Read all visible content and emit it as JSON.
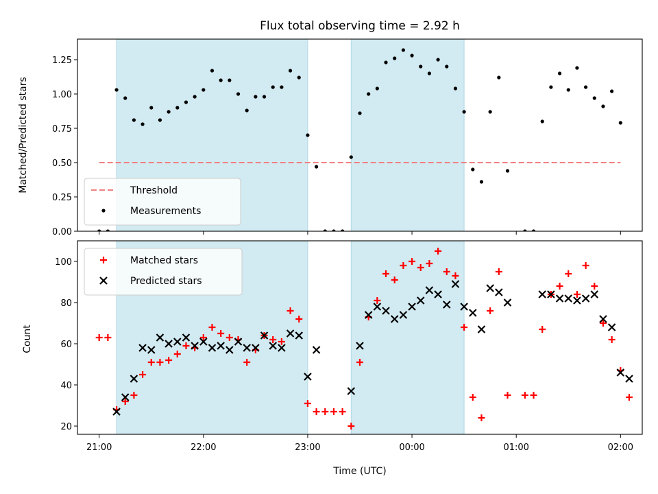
{
  "chart_data": [
    {
      "type": "scatter",
      "title": "Flux total observing time = 2.92 h",
      "ylabel": "Matched/Predicted stars",
      "xlabel": "",
      "x_units": "minutes after 21:00 UTC",
      "ylim": [
        0.0,
        1.4
      ],
      "yticks": [
        "0.00",
        "0.25",
        "0.50",
        "0.75",
        "1.00",
        "1.25"
      ],
      "threshold": {
        "name": "Threshold",
        "value": 0.5,
        "x_range": [
          0,
          300
        ],
        "color": "#f08080"
      },
      "shaded_intervals": [
        [
          10,
          120
        ],
        [
          145,
          210
        ]
      ],
      "shade_color": "#add8e6",
      "legend": {
        "placement": "lower-left",
        "entries": [
          "Threshold",
          "Measurements"
        ]
      },
      "series": [
        {
          "name": "Measurements",
          "color": "#000000",
          "points": [
            [
              0,
              0.0
            ],
            [
              5,
              0.0
            ],
            [
              10,
              1.03
            ],
            [
              15,
              0.97
            ],
            [
              20,
              0.81
            ],
            [
              25,
              0.78
            ],
            [
              30,
              0.9
            ],
            [
              35,
              0.81
            ],
            [
              40,
              0.87
            ],
            [
              45,
              0.9
            ],
            [
              50,
              0.94
            ],
            [
              55,
              0.98
            ],
            [
              60,
              1.03
            ],
            [
              65,
              1.17
            ],
            [
              70,
              1.1
            ],
            [
              75,
              1.1
            ],
            [
              80,
              1.0
            ],
            [
              85,
              0.88
            ],
            [
              90,
              0.98
            ],
            [
              95,
              0.98
            ],
            [
              100,
              1.05
            ],
            [
              105,
              1.05
            ],
            [
              110,
              1.17
            ],
            [
              115,
              1.12
            ],
            [
              120,
              0.7
            ],
            [
              125,
              0.47
            ],
            [
              130,
              0.0
            ],
            [
              135,
              0.0
            ],
            [
              140,
              0.0
            ],
            [
              145,
              0.54
            ],
            [
              150,
              0.86
            ],
            [
              155,
              1.0
            ],
            [
              160,
              1.04
            ],
            [
              165,
              1.23
            ],
            [
              170,
              1.26
            ],
            [
              175,
              1.32
            ],
            [
              180,
              1.28
            ],
            [
              185,
              1.2
            ],
            [
              190,
              1.15
            ],
            [
              195,
              1.25
            ],
            [
              200,
              1.2
            ],
            [
              205,
              1.04
            ],
            [
              210,
              0.87
            ],
            [
              215,
              0.45
            ],
            [
              220,
              0.36
            ],
            [
              225,
              0.87
            ],
            [
              230,
              1.12
            ],
            [
              235,
              0.44
            ],
            [
              245,
              0.0
            ],
            [
              250,
              0.0
            ],
            [
              255,
              0.8
            ],
            [
              260,
              1.05
            ],
            [
              265,
              1.15
            ],
            [
              270,
              1.03
            ],
            [
              275,
              1.19
            ],
            [
              280,
              1.05
            ],
            [
              285,
              0.97
            ],
            [
              290,
              0.91
            ],
            [
              295,
              1.02
            ],
            [
              300,
              0.79
            ]
          ]
        }
      ]
    },
    {
      "type": "scatter",
      "title": "",
      "ylabel": "Count",
      "xlabel": "Time (UTC)",
      "x_units": "minutes after 21:00 UTC",
      "xticks": [
        "21:00",
        "22:00",
        "23:00",
        "00:00",
        "01:00",
        "02:00"
      ],
      "ylim": [
        16,
        110
      ],
      "yticks": [
        "20",
        "40",
        "60",
        "80",
        "100"
      ],
      "shaded_intervals": [
        [
          10,
          120
        ],
        [
          145,
          210
        ]
      ],
      "shade_color": "#add8e6",
      "legend": {
        "placement": "upper-left",
        "entries": [
          "Matched stars",
          "Predicted stars"
        ]
      },
      "series": [
        {
          "name": "Matched stars",
          "marker": "plus",
          "color": "#ff0000",
          "points": [
            [
              0,
              63
            ],
            [
              5,
              63
            ],
            [
              10,
              28
            ],
            [
              15,
              32
            ],
            [
              20,
              35
            ],
            [
              25,
              45
            ],
            [
              30,
              51
            ],
            [
              35,
              51
            ],
            [
              40,
              52
            ],
            [
              45,
              55
            ],
            [
              50,
              59
            ],
            [
              55,
              58
            ],
            [
              60,
              63
            ],
            [
              65,
              68
            ],
            [
              70,
              65
            ],
            [
              75,
              63
            ],
            [
              80,
              62
            ],
            [
              85,
              51
            ],
            [
              90,
              57
            ],
            [
              95,
              64
            ],
            [
              100,
              62
            ],
            [
              105,
              61
            ],
            [
              110,
              76
            ],
            [
              115,
              72
            ],
            [
              120,
              31
            ],
            [
              125,
              27
            ],
            [
              130,
              27
            ],
            [
              135,
              27
            ],
            [
              140,
              27
            ],
            [
              145,
              20
            ],
            [
              150,
              51
            ],
            [
              155,
              73
            ],
            [
              160,
              81
            ],
            [
              165,
              94
            ],
            [
              170,
              91
            ],
            [
              175,
              98
            ],
            [
              180,
              100
            ],
            [
              185,
              97
            ],
            [
              190,
              99
            ],
            [
              195,
              105
            ],
            [
              200,
              95
            ],
            [
              205,
              93
            ],
            [
              210,
              68
            ],
            [
              215,
              34
            ],
            [
              220,
              24
            ],
            [
              225,
              76
            ],
            [
              230,
              95
            ],
            [
              235,
              35
            ],
            [
              245,
              35
            ],
            [
              250,
              35
            ],
            [
              255,
              67
            ],
            [
              260,
              84
            ],
            [
              265,
              88
            ],
            [
              270,
              94
            ],
            [
              275,
              84
            ],
            [
              280,
              98
            ],
            [
              285,
              88
            ],
            [
              290,
              70
            ],
            [
              295,
              62
            ],
            [
              300,
              47
            ],
            [
              305,
              34
            ]
          ]
        },
        {
          "name": "Predicted stars",
          "marker": "x",
          "color": "#000000",
          "points": [
            [
              10,
              27
            ],
            [
              15,
              34
            ],
            [
              20,
              43
            ],
            [
              25,
              58
            ],
            [
              30,
              57
            ],
            [
              35,
              63
            ],
            [
              40,
              60
            ],
            [
              45,
              61
            ],
            [
              50,
              63
            ],
            [
              55,
              59
            ],
            [
              60,
              61
            ],
            [
              65,
              58
            ],
            [
              70,
              59
            ],
            [
              75,
              57
            ],
            [
              80,
              61
            ],
            [
              85,
              58
            ],
            [
              90,
              58
            ],
            [
              95,
              64
            ],
            [
              100,
              59
            ],
            [
              105,
              58
            ],
            [
              110,
              65
            ],
            [
              115,
              64
            ],
            [
              120,
              44
            ],
            [
              125,
              57
            ],
            [
              145,
              37
            ],
            [
              150,
              59
            ],
            [
              155,
              74
            ],
            [
              160,
              78
            ],
            [
              165,
              76
            ],
            [
              170,
              72
            ],
            [
              175,
              74
            ],
            [
              180,
              78
            ],
            [
              185,
              81
            ],
            [
              190,
              86
            ],
            [
              195,
              84
            ],
            [
              200,
              79
            ],
            [
              205,
              89
            ],
            [
              210,
              78
            ],
            [
              215,
              75
            ],
            [
              220,
              67
            ],
            [
              225,
              87
            ],
            [
              230,
              85
            ],
            [
              235,
              80
            ],
            [
              255,
              84
            ],
            [
              260,
              84
            ],
            [
              265,
              82
            ],
            [
              270,
              82
            ],
            [
              275,
              81
            ],
            [
              280,
              82
            ],
            [
              285,
              84
            ],
            [
              290,
              72
            ],
            [
              295,
              68
            ],
            [
              300,
              46
            ],
            [
              305,
              43
            ]
          ]
        }
      ]
    }
  ]
}
